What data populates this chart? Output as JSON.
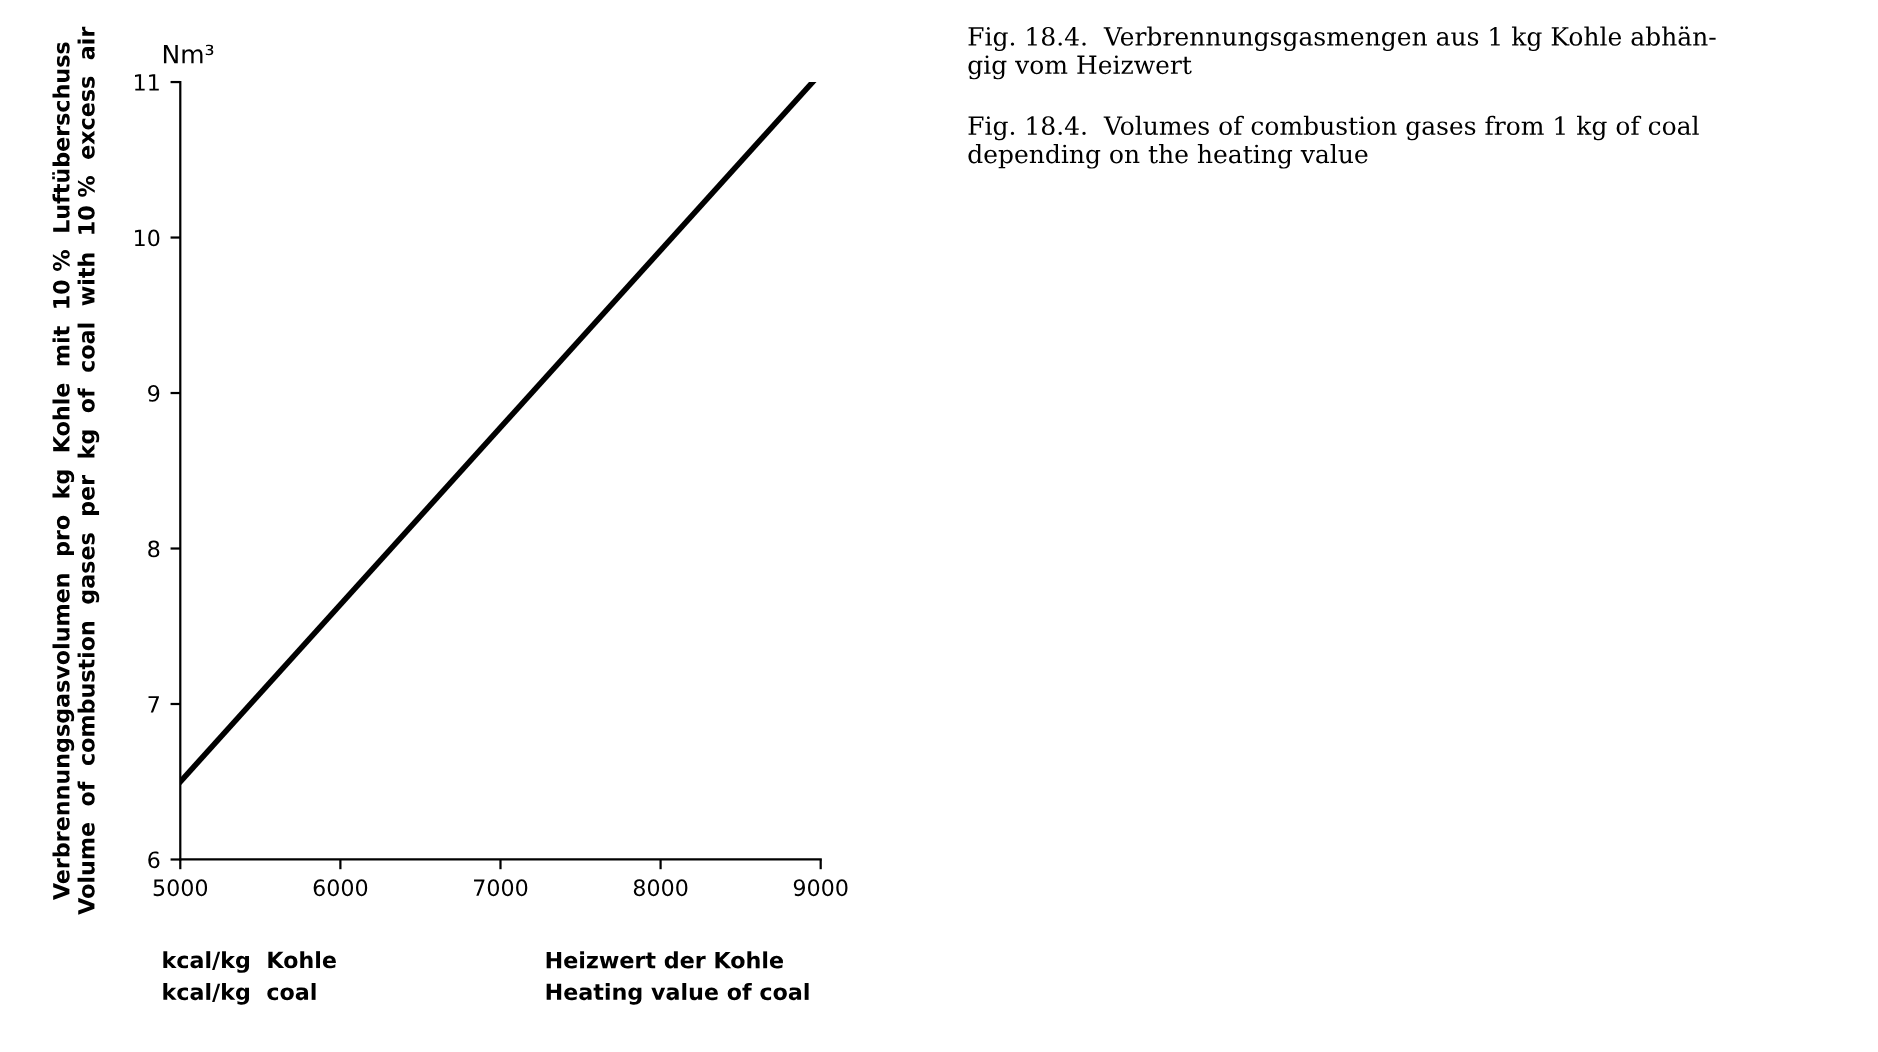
{
  "chart_data": {
    "type": "line",
    "title": "Fig. 18.4.  Verbrennungsgasmengen aus 1 kg Kohle abhän-\ngig vom Heizwert",
    "subtitle": "Fig. 18.4.  Volumes of combustion gases from 1 kg of coal\ndepending on the heating value",
    "xlabel": "Heizwert der Kohle\nHeating value of coal",
    "ylabel": "Verbrennungsgasvolumen  pro  kg  Kohle  mit  10 %  Luftüberschuss\nVolume  of  combustion  gases  per  kg  of  coal  with  10 %  excess  air",
    "annotations": [
      "Nm³",
      "kcal/kg  Kohle\nkcal/kg  coal"
    ],
    "x": [
      5000,
      8950
    ],
    "series": [
      {
        "color": "#000000",
        "values": [
          6.5,
          11.0
        ]
      }
    ],
    "xlim": [
      5000,
      9000
    ],
    "xticks": [
      5000,
      6000,
      7000,
      8000,
      9000
    ],
    "ylim": [
      6,
      11
    ],
    "yticks": [
      6,
      7,
      8,
      9,
      10,
      11
    ],
    "grid": false,
    "legend": false,
    "marker": "none",
    "line_style": "solid"
  }
}
